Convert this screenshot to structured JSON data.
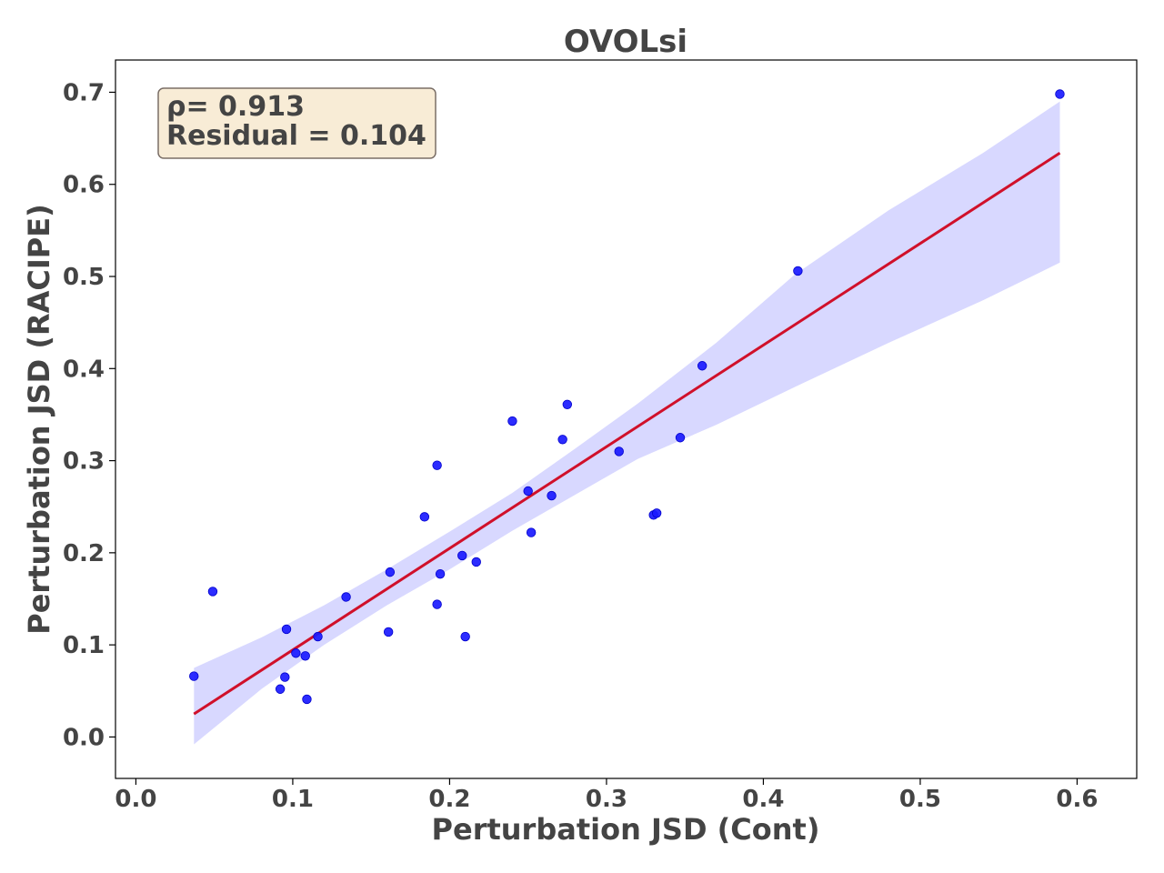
{
  "chart_data": {
    "type": "scatter",
    "title": "OVOLsi",
    "xlabel": "Perturbation JSD (Cont)",
    "ylabel": "Perturbation JSD (RACIPE)",
    "xlim": [
      -0.013,
      0.638
    ],
    "ylim": [
      -0.045,
      0.735
    ],
    "xticks": [
      0.0,
      0.1,
      0.2,
      0.3,
      0.4,
      0.5,
      0.6
    ],
    "xtick_labels": [
      "0.0",
      "0.1",
      "0.2",
      "0.3",
      "0.4",
      "0.5",
      "0.6"
    ],
    "yticks": [
      0.0,
      0.1,
      0.2,
      0.3,
      0.4,
      0.5,
      0.6,
      0.7
    ],
    "ytick_labels": [
      "0.0",
      "0.1",
      "0.2",
      "0.3",
      "0.4",
      "0.5",
      "0.6",
      "0.7"
    ],
    "grid": false,
    "annotation": {
      "rho_text": "ρ= 0.913",
      "residual_text": "Residual = 0.104"
    },
    "colors": {
      "points": "#1a1aff",
      "fit_line": "#d0102a",
      "confidence_band": "#d8d8ff",
      "annotation_bg": "#f8ecd6",
      "annotation_border": "#7a6e66",
      "text": "#444444"
    },
    "points": [
      {
        "x": 0.037,
        "y": 0.066
      },
      {
        "x": 0.049,
        "y": 0.158
      },
      {
        "x": 0.092,
        "y": 0.052
      },
      {
        "x": 0.095,
        "y": 0.065
      },
      {
        "x": 0.096,
        "y": 0.117
      },
      {
        "x": 0.102,
        "y": 0.091
      },
      {
        "x": 0.108,
        "y": 0.088
      },
      {
        "x": 0.109,
        "y": 0.041
      },
      {
        "x": 0.116,
        "y": 0.109
      },
      {
        "x": 0.134,
        "y": 0.152
      },
      {
        "x": 0.161,
        "y": 0.114
      },
      {
        "x": 0.162,
        "y": 0.179
      },
      {
        "x": 0.184,
        "y": 0.239
      },
      {
        "x": 0.192,
        "y": 0.295
      },
      {
        "x": 0.192,
        "y": 0.144
      },
      {
        "x": 0.194,
        "y": 0.177
      },
      {
        "x": 0.208,
        "y": 0.197
      },
      {
        "x": 0.21,
        "y": 0.109
      },
      {
        "x": 0.217,
        "y": 0.19
      },
      {
        "x": 0.24,
        "y": 0.343
      },
      {
        "x": 0.25,
        "y": 0.267
      },
      {
        "x": 0.252,
        "y": 0.222
      },
      {
        "x": 0.265,
        "y": 0.262
      },
      {
        "x": 0.272,
        "y": 0.323
      },
      {
        "x": 0.275,
        "y": 0.361
      },
      {
        "x": 0.308,
        "y": 0.31
      },
      {
        "x": 0.33,
        "y": 0.241
      },
      {
        "x": 0.332,
        "y": 0.243
      },
      {
        "x": 0.347,
        "y": 0.325
      },
      {
        "x": 0.361,
        "y": 0.403
      },
      {
        "x": 0.422,
        "y": 0.506
      },
      {
        "x": 0.589,
        "y": 0.698
      }
    ],
    "fit_line": {
      "x": [
        0.037,
        0.589
      ],
      "y": [
        0.025,
        0.634
      ]
    },
    "confidence_band": {
      "x": [
        0.037,
        0.08,
        0.12,
        0.16,
        0.2,
        0.24,
        0.28,
        0.32,
        0.37,
        0.42,
        0.48,
        0.54,
        0.589
      ],
      "upper": [
        0.075,
        0.108,
        0.143,
        0.182,
        0.223,
        0.265,
        0.313,
        0.362,
        0.428,
        0.502,
        0.572,
        0.634,
        0.69
      ],
      "lower": [
        -0.008,
        0.052,
        0.1,
        0.143,
        0.182,
        0.224,
        0.263,
        0.302,
        0.339,
        0.38,
        0.428,
        0.474,
        0.515
      ]
    }
  }
}
